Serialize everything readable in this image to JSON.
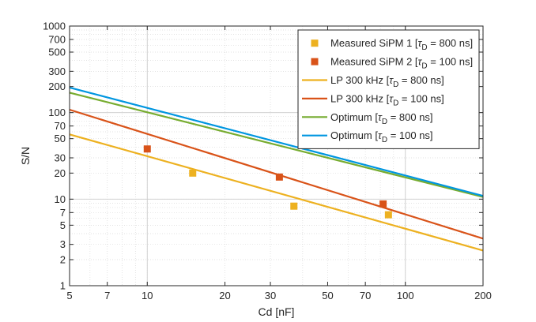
{
  "chart_data": {
    "type": "line",
    "title": "",
    "xlabel": "Cd [nF]",
    "ylabel": "S/N",
    "xscale": "log",
    "yscale": "log",
    "xlim": [
      5,
      200
    ],
    "ylim": [
      1,
      1000
    ],
    "grid": true,
    "legend_position": "top-right",
    "x_ticks": [
      {
        "value": 5,
        "label": "5"
      },
      {
        "value": 7,
        "label": "7"
      },
      {
        "value": 10,
        "label": "10"
      },
      {
        "value": 20,
        "label": "20"
      },
      {
        "value": 30,
        "label": "30"
      },
      {
        "value": 50,
        "label": "50"
      },
      {
        "value": 70,
        "label": "70"
      },
      {
        "value": 100,
        "label": "100"
      },
      {
        "value": 200,
        "label": "200"
      }
    ],
    "y_ticks": [
      {
        "value": 1,
        "label": "1"
      },
      {
        "value": 2,
        "label": "2"
      },
      {
        "value": 3,
        "label": "3"
      },
      {
        "value": 5,
        "label": "5"
      },
      {
        "value": 7,
        "label": "7"
      },
      {
        "value": 10,
        "label": "10"
      },
      {
        "value": 20,
        "label": "20"
      },
      {
        "value": 30,
        "label": "30"
      },
      {
        "value": 50,
        "label": "50"
      },
      {
        "value": 70,
        "label": "70"
      },
      {
        "value": 100,
        "label": "100"
      },
      {
        "value": 200,
        "label": "200"
      },
      {
        "value": 300,
        "label": "300"
      },
      {
        "value": 500,
        "label": "500"
      },
      {
        "value": 700,
        "label": "700"
      },
      {
        "value": 1000,
        "label": "1000"
      }
    ],
    "series": [
      {
        "name": "Measured SiPM 1",
        "legend_text": "Measured SiPM 1 [",
        "legend_sub": "D",
        "legend_rest": " = 800 ns]",
        "kind": "marker",
        "color": "#EDB120",
        "points": [
          {
            "x": 15,
            "y": 20
          },
          {
            "x": 37,
            "y": 8.3
          },
          {
            "x": 86,
            "y": 6.6
          }
        ]
      },
      {
        "name": "Measured SiPM 2",
        "legend_text": "Measured SiPM 2 [",
        "legend_sub": "D",
        "legend_rest": " = 100 ns]",
        "kind": "marker",
        "color": "#D95319",
        "points": [
          {
            "x": 10,
            "y": 38
          },
          {
            "x": 32.5,
            "y": 18
          },
          {
            "x": 82,
            "y": 8.8
          }
        ]
      },
      {
        "name": "LP 300 kHz 800 ns",
        "legend_text": "LP 300 kHz [",
        "legend_sub": "D",
        "legend_rest": " = 800 ns]",
        "kind": "line",
        "color": "#EDB120",
        "points": [
          {
            "x": 5,
            "y": 56
          },
          {
            "x": 200,
            "y": 2.55
          }
        ]
      },
      {
        "name": "LP 300 kHz 100 ns",
        "legend_text": "LP 300 kHz [",
        "legend_sub": "D",
        "legend_rest": " = 100 ns]",
        "kind": "line",
        "color": "#D95319",
        "points": [
          {
            "x": 5,
            "y": 108
          },
          {
            "x": 200,
            "y": 3.5
          }
        ]
      },
      {
        "name": "Optimum 800 ns",
        "legend_text": "Optimum [",
        "legend_sub": "D",
        "legend_rest": " = 800 ns]",
        "kind": "line",
        "color": "#77AC30",
        "points": [
          {
            "x": 5,
            "y": 170
          },
          {
            "x": 200,
            "y": 10.6
          }
        ]
      },
      {
        "name": "Optimum 100 ns",
        "legend_text": "Optimum [",
        "legend_sub": "D",
        "legend_rest": " = 100 ns]",
        "kind": "line",
        "color": "#0096E0",
        "points": [
          {
            "x": 5,
            "y": 195
          },
          {
            "x": 200,
            "y": 10.9
          }
        ]
      }
    ]
  }
}
